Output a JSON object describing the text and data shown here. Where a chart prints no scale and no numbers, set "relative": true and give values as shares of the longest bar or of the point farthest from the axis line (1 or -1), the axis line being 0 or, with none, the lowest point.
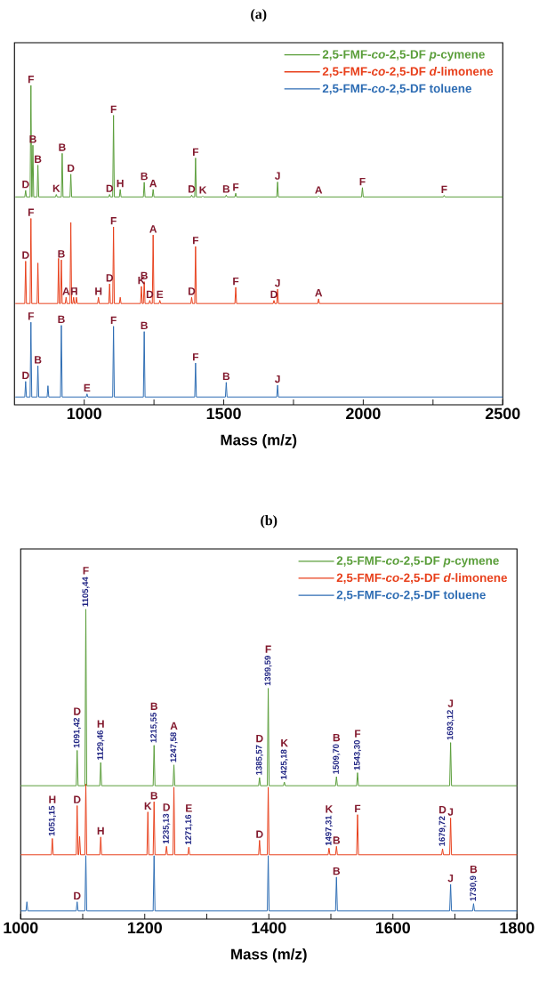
{
  "chart_data": [
    {
      "type": "line",
      "title": "(a)",
      "xlabel": "Mass (m/z)",
      "relative": true,
      "legend": "top right",
      "xlim": [
        750,
        2500
      ],
      "xticks": [
        1000,
        {
          "value": 1250,
          "label": null
        },
        1500,
        {
          "value": 1750,
          "label": null
        },
        2000,
        {
          "value": 2250,
          "label": null
        },
        2500
      ],
      "series": [
        {
          "name": "2,5-FMF-*co*-2,5-DF *p*-cymene",
          "color": "#5a9e3a",
          "x": [
            753,
            787,
            790,
            793,
            806,
            809,
            812,
            813,
            816,
            819,
            831,
            834,
            837,
            897,
            900,
            903,
            918,
            921,
            924,
            949,
            952,
            955,
            1088,
            1091,
            1094,
            1102,
            1105,
            1108,
            1126,
            1129,
            1132,
            1212,
            1215,
            1218,
            1244,
            1247,
            1250,
            1382,
            1385,
            1388,
            1396,
            1399,
            1402,
            1422,
            1425,
            1428,
            1506,
            1509,
            1512,
            1540,
            1543,
            1546,
            1690,
            1693,
            1696,
            1837,
            1840,
            1843,
            1994,
            1997,
            2000,
            2287,
            2290,
            2293,
            2500
          ],
          "values": [
            0.642,
            0.642,
            0.663,
            0.642,
            0.642,
            1.0,
            0.642,
            0.642,
            0.808,
            0.642,
            0.642,
            0.744,
            0.642,
            0.642,
            0.65,
            0.642,
            0.642,
            0.782,
            0.642,
            0.642,
            0.715,
            0.642,
            0.642,
            0.65,
            0.642,
            0.642,
            0.904,
            0.642,
            0.642,
            0.666,
            0.642,
            0.642,
            0.689,
            0.642,
            0.642,
            0.666,
            0.642,
            0.642,
            0.648,
            0.642,
            0.642,
            0.767,
            0.642,
            0.642,
            0.645,
            0.642,
            0.642,
            0.648,
            0.642,
            0.642,
            0.654,
            0.642,
            0.642,
            0.69,
            0.642,
            0.642,
            0.645,
            0.642,
            0.642,
            0.672,
            0.642,
            0.642,
            0.647,
            0.642,
            0.642
          ]
        },
        {
          "name": "2,5-FMF-*co*-2,5-DF *d*-limonene",
          "color": "#e8401c",
          "x": [
            753,
            787,
            790,
            793,
            806,
            809,
            812,
            831,
            834,
            837,
            905,
            908,
            911,
            915,
            918,
            921,
            932,
            935,
            938,
            949,
            952,
            955,
            959,
            962,
            965,
            969,
            972,
            975,
            1048,
            1051,
            1054,
            1088,
            1091,
            1094,
            1102,
            1105,
            1108,
            1126,
            1129,
            1132,
            1202,
            1205,
            1208,
            1212,
            1215,
            1218,
            1232,
            1235,
            1238,
            1244,
            1247,
            1250,
            1268,
            1271,
            1274,
            1382,
            1385,
            1388,
            1396,
            1399,
            1402,
            1540,
            1543,
            1546,
            1677,
            1680,
            1683,
            1690,
            1693,
            1696,
            1837,
            1840,
            1843,
            2500
          ],
          "values": [
            0.3,
            0.3,
            0.436,
            0.3,
            0.3,
            0.573,
            0.3,
            0.3,
            0.43,
            0.3,
            0.3,
            0.445,
            0.3,
            0.3,
            0.44,
            0.3,
            0.3,
            0.32,
            0.3,
            0.3,
            0.56,
            0.3,
            0.3,
            0.32,
            0.3,
            0.3,
            0.32,
            0.3,
            0.3,
            0.32,
            0.3,
            0.3,
            0.363,
            0.3,
            0.3,
            0.546,
            0.3,
            0.3,
            0.32,
            0.3,
            0.3,
            0.355,
            0.3,
            0.3,
            0.37,
            0.3,
            0.3,
            0.31,
            0.3,
            0.3,
            0.52,
            0.3,
            0.3,
            0.31,
            0.3,
            0.3,
            0.32,
            0.3,
            0.3,
            0.483,
            0.3,
            0.3,
            0.352,
            0.3,
            0.3,
            0.31,
            0.3,
            0.3,
            0.346,
            0.3,
            0.3,
            0.315,
            0.3,
            0.3
          ]
        },
        {
          "name": "2,5-FMF-*co*-2,5-DF toluene",
          "color": "#2e6db4",
          "x": [
            753,
            787,
            790,
            793,
            806,
            809,
            812,
            831,
            834,
            837,
            867,
            870,
            873,
            915,
            918,
            921,
            1007,
            1010,
            1013,
            1102,
            1105,
            1108,
            1212,
            1215,
            1218,
            1396,
            1399,
            1402,
            1506,
            1509,
            1512,
            1690,
            1693,
            1696,
            2500
          ],
          "values": [
            0,
            0,
            0.05,
            0,
            0,
            0.24,
            0,
            0,
            0.1,
            0,
            0,
            0.036,
            0,
            0,
            0.23,
            0,
            0,
            0.01,
            0,
            0,
            0.227,
            0,
            0,
            0.21,
            0,
            0,
            0.109,
            0,
            0,
            0.047,
            0,
            0,
            0.038,
            0,
            0
          ]
        }
      ],
      "annotations": [
        {
          "text": "D",
          "x": 790,
          "y": 0.663
        },
        {
          "text": "F",
          "x": 809,
          "y": 1.0
        },
        {
          "text": "B",
          "x": 816,
          "y": 0.808
        },
        {
          "text": "B",
          "x": 834,
          "y": 0.744
        },
        {
          "text": "K",
          "x": 900,
          "y": 0.65
        },
        {
          "text": "B",
          "x": 921,
          "y": 0.782
        },
        {
          "text": "D",
          "x": 952,
          "y": 0.715
        },
        {
          "text": "F",
          "x": 1105,
          "y": 0.904
        },
        {
          "text": "D",
          "x": 1091,
          "y": 0.65
        },
        {
          "text": "H",
          "x": 1129,
          "y": 0.666
        },
        {
          "text": "B",
          "x": 1215,
          "y": 0.689
        },
        {
          "text": "A",
          "x": 1247,
          "y": 0.666
        },
        {
          "text": "D",
          "x": 1385,
          "y": 0.648
        },
        {
          "text": "F",
          "x": 1399,
          "y": 0.767
        },
        {
          "text": "K",
          "x": 1425,
          "y": 0.645
        },
        {
          "text": "B",
          "x": 1509,
          "y": 0.648
        },
        {
          "text": "F",
          "x": 1543,
          "y": 0.654
        },
        {
          "text": "J",
          "x": 1693,
          "y": 0.69
        },
        {
          "text": "A",
          "x": 1840,
          "y": 0.645
        },
        {
          "text": "F",
          "x": 1997,
          "y": 0.672
        },
        {
          "text": "F",
          "x": 2290,
          "y": 0.647
        },
        {
          "text": "D",
          "x": 790,
          "y": 0.436
        },
        {
          "text": "F",
          "x": 809,
          "y": 0.573
        },
        {
          "text": "B",
          "x": 918,
          "y": 0.44
        },
        {
          "text": "A",
          "x": 935,
          "y": 0.32
        },
        {
          "text": "F",
          "x": 962,
          "y": 0.32
        },
        {
          "text": "I",
          "x": 972,
          "y": 0.32
        },
        {
          "text": "H",
          "x": 1051,
          "y": 0.32
        },
        {
          "text": "D",
          "x": 1091,
          "y": 0.363
        },
        {
          "text": "F",
          "x": 1105,
          "y": 0.546
        },
        {
          "text": "K",
          "x": 1205,
          "y": 0.355
        },
        {
          "text": "B",
          "x": 1215,
          "y": 0.37
        },
        {
          "text": "D",
          "x": 1235,
          "y": 0.31
        },
        {
          "text": "E",
          "x": 1271,
          "y": 0.31
        },
        {
          "text": "A",
          "x": 1247,
          "y": 0.52
        },
        {
          "text": "D",
          "x": 1385,
          "y": 0.32
        },
        {
          "text": "F",
          "x": 1399,
          "y": 0.483
        },
        {
          "text": "F",
          "x": 1543,
          "y": 0.352
        },
        {
          "text": "D",
          "x": 1680,
          "y": 0.31
        },
        {
          "text": "J",
          "x": 1693,
          "y": 0.346
        },
        {
          "text": "A",
          "x": 1840,
          "y": 0.315
        },
        {
          "text": "D",
          "x": 790,
          "y": 0.05
        },
        {
          "text": "F",
          "x": 809,
          "y": 0.24
        },
        {
          "text": "B",
          "x": 834,
          "y": 0.1
        },
        {
          "text": "B",
          "x": 918,
          "y": 0.23
        },
        {
          "text": "E",
          "x": 1010,
          "y": 0.01
        },
        {
          "text": "F",
          "x": 1105,
          "y": 0.227
        },
        {
          "text": "B",
          "x": 1215,
          "y": 0.21
        },
        {
          "text": "F",
          "x": 1399,
          "y": 0.109
        },
        {
          "text": "B",
          "x": 1509,
          "y": 0.047
        },
        {
          "text": "J",
          "x": 1693,
          "y": 0.038
        }
      ]
    },
    {
      "type": "line",
      "title": "(b)",
      "xlabel": "Mass (m/z)",
      "relative": true,
      "legend": "top right",
      "xlim": [
        1000,
        1800
      ],
      "xticks": [
        1000,
        {
          "value": 1100,
          "label": null
        },
        1200,
        {
          "value": 1300,
          "label": null
        },
        1400,
        {
          "value": 1500,
          "label": null
        },
        1600,
        {
          "value": 1700,
          "label": null
        },
        1800
      ],
      "series": [
        {
          "name": "2,5-FMF-*co*-2,5-DF *p*-cymene",
          "color": "#5a9e3a",
          "x": [
            1000,
            1089.5,
            1091,
            1092.5,
            1103.5,
            1105,
            1106.5,
            1127.5,
            1129,
            1130.5,
            1213.5,
            1215,
            1216.5,
            1245.5,
            1247,
            1248.5,
            1383.5,
            1385,
            1386.5,
            1397.5,
            1399,
            1400.5,
            1423.5,
            1425,
            1426.5,
            1507.5,
            1509,
            1510.5,
            1541.5,
            1543,
            1544.5,
            1691.5,
            1693,
            1694.5,
            1800
          ],
          "values": [
            0.415,
            0.415,
            0.532,
            0.415,
            0.415,
            1.0,
            0.415,
            0.415,
            0.492,
            0.415,
            0.415,
            0.549,
            0.415,
            0.415,
            0.484,
            0.415,
            0.415,
            0.442,
            0.415,
            0.415,
            0.738,
            0.415,
            0.415,
            0.427,
            0.415,
            0.415,
            0.445,
            0.415,
            0.415,
            0.458,
            0.415,
            0.415,
            0.558,
            0.415,
            0.415
          ]
        },
        {
          "name": "2,5-FMF-*co*-2,5-DF *d*-limonene",
          "color": "#e8401c",
          "x": [
            1000,
            1049.5,
            1051,
            1052.5,
            1089.5,
            1091,
            1092.5,
            1093.5,
            1095,
            1096.5,
            1103.5,
            1105,
            1106.5,
            1127.5,
            1129,
            1130.5,
            1203.5,
            1205,
            1206.5,
            1213.5,
            1215,
            1216.5,
            1233.5,
            1235,
            1236.5,
            1245.5,
            1247,
            1248.5,
            1269.5,
            1271,
            1272.5,
            1383.5,
            1385,
            1386.5,
            1397.5,
            1399,
            1400.5,
            1495.5,
            1497,
            1498.5,
            1507.5,
            1509,
            1510.5,
            1541.5,
            1543,
            1544.5,
            1678.5,
            1680,
            1681.5,
            1691.5,
            1693,
            1694.5,
            1800
          ],
          "values": [
            0.186,
            0.186,
            0.24,
            0.186,
            0.186,
            0.349,
            0.186,
            0.186,
            0.247,
            0.186,
            0.186,
            0.42,
            0.186,
            0.186,
            0.245,
            0.186,
            0.186,
            0.328,
            0.186,
            0.186,
            0.362,
            0.186,
            0.186,
            0.214,
            0.186,
            0.186,
            0.41,
            0.186,
            0.186,
            0.211,
            0.186,
            0.186,
            0.234,
            0.186,
            0.186,
            0.41,
            0.186,
            0.186,
            0.208,
            0.186,
            0.186,
            0.214,
            0.186,
            0.186,
            0.319,
            0.186,
            0.186,
            0.206,
            0.186,
            0.186,
            0.308,
            0.186,
            0.186
          ]
        },
        {
          "name": "2,5-FMF-*co*-2,5-DF toluene",
          "color": "#2e6db4",
          "x": [
            1000,
            1008.5,
            1010,
            1011.5,
            1089.5,
            1091,
            1092.5,
            1103.5,
            1105,
            1106.5,
            1213.5,
            1215,
            1216.5,
            1397.5,
            1399,
            1400.5,
            1507.5,
            1509,
            1510.5,
            1691.5,
            1693,
            1694.5,
            1728.5,
            1730,
            1731.5,
            1800
          ],
          "values": [
            0,
            0,
            0.03,
            0,
            0,
            0.03,
            0,
            0,
            0.183,
            0,
            0,
            0.183,
            0,
            0,
            0.183,
            0,
            0,
            0.112,
            0,
            0,
            0.088,
            0,
            0,
            0.024,
            0,
            0
          ]
        }
      ],
      "annotations": [
        {
          "text": "1105,44",
          "x": 1105,
          "y": 1.0
        },
        "F",
        {
          "text": "1091,42",
          "x": 1091,
          "y": 0.532
        },
        "D",
        {
          "text": "1129,46",
          "x": 1129,
          "y": 0.492
        },
        "H",
        {
          "text": "1215,55",
          "x": 1215,
          "y": 0.549
        },
        "B",
        {
          "text": "1247,58",
          "x": 1247,
          "y": 0.484
        },
        "A",
        {
          "text": "1385,57",
          "x": 1385,
          "y": 0.442
        },
        "D",
        {
          "text": "1399,59",
          "x": 1399,
          "y": 0.738
        },
        "F",
        {
          "text": "1425,18",
          "x": 1425,
          "y": 0.427
        },
        "K",
        {
          "text": "1509,70",
          "x": 1509,
          "y": 0.445
        },
        "B",
        {
          "text": "1543,30",
          "x": 1543,
          "y": 0.458
        },
        "F",
        {
          "text": "1693,12",
          "x": 1693,
          "y": 0.558
        },
        "J",
        {
          "text": "1051,15",
          "x": 1051,
          "y": 0.24
        },
        "H",
        {
          "text": "D",
          "x": 1091,
          "y": 0.349
        },
        {
          "text": "H",
          "x": 1129,
          "y": 0.245
        },
        {
          "text": "K",
          "x": 1205,
          "y": 0.328
        },
        {
          "text": "B",
          "x": 1215,
          "y": 0.362
        },
        {
          "text": "1235,13",
          "x": 1235,
          "y": 0.214
        },
        "D",
        {
          "text": "1271,16",
          "x": 1271,
          "y": 0.211
        },
        "E",
        {
          "text": "D",
          "x": 1385,
          "y": 0.234
        },
        {
          "text": "1497,31",
          "x": 1497,
          "y": 0.208
        },
        "K",
        {
          "text": "B",
          "x": 1509,
          "y": 0.214
        },
        {
          "text": "F",
          "x": 1543,
          "y": 0.319
        },
        {
          "text": "1679,72",
          "x": 1680,
          "y": 0.206
        },
        "D",
        {
          "text": "J",
          "x": 1693,
          "y": 0.308
        },
        {
          "text": "D",
          "x": 1091,
          "y": 0.03
        },
        {
          "text": "B",
          "x": 1509,
          "y": 0.112
        },
        {
          "text": "J",
          "x": 1693,
          "y": 0.088
        },
        {
          "text": "1730,9",
          "x": 1730,
          "y": 0.024
        },
        "B"
      ]
    }
  ]
}
